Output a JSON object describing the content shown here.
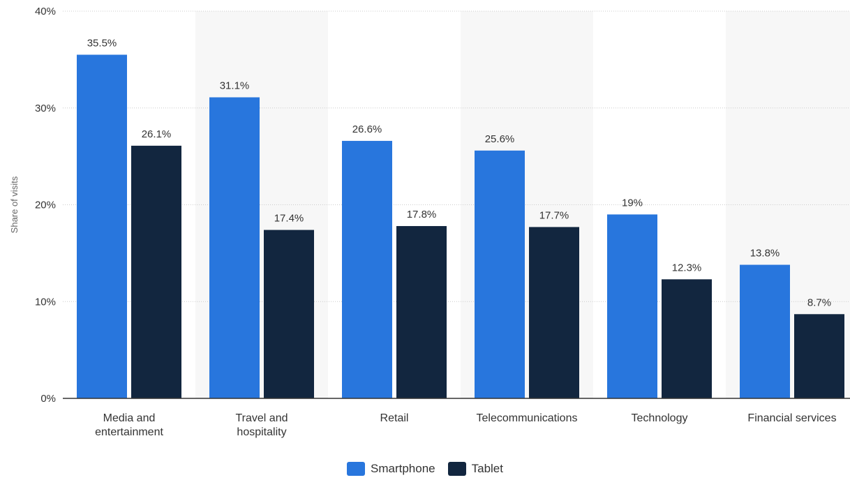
{
  "chart_data": {
    "type": "bar",
    "categories": [
      "Media and entertainment",
      "Travel and hospitality",
      "Retail",
      "Telecommunications",
      "Technology",
      "Financial services"
    ],
    "category_lines": [
      [
        "Media and",
        "entertainment"
      ],
      [
        "Travel and",
        "hospitality"
      ],
      [
        "Retail"
      ],
      [
        "Telecommunications"
      ],
      [
        "Technology"
      ],
      [
        "Financial services"
      ]
    ],
    "series": [
      {
        "name": "Smartphone",
        "values": [
          35.5,
          31.1,
          26.6,
          25.6,
          19,
          13.8
        ],
        "labels": [
          "35.5%",
          "31.1%",
          "26.6%",
          "25.6%",
          "19%",
          "13.8%"
        ],
        "color": "#2876dd"
      },
      {
        "name": "Tablet",
        "values": [
          26.1,
          17.4,
          17.8,
          17.7,
          12.3,
          8.7
        ],
        "labels": [
          "26.1%",
          "17.4%",
          "17.8%",
          "17.7%",
          "12.3%",
          "8.7%"
        ],
        "color": "#12263f"
      }
    ],
    "title": "",
    "xlabel": "",
    "ylabel": "Share of visits",
    "ylim": [
      0,
      40
    ],
    "yticks": [
      0,
      10,
      20,
      30,
      40
    ],
    "ytick_labels": [
      "0%",
      "10%",
      "20%",
      "30%",
      "40%"
    ],
    "grid": true,
    "legend_position": "bottom-center",
    "colors": {
      "band": "#f7f7f7",
      "grid": "#cccccc",
      "axis": "#333333",
      "tick_text": "#333333",
      "label_text": "#333333"
    }
  }
}
